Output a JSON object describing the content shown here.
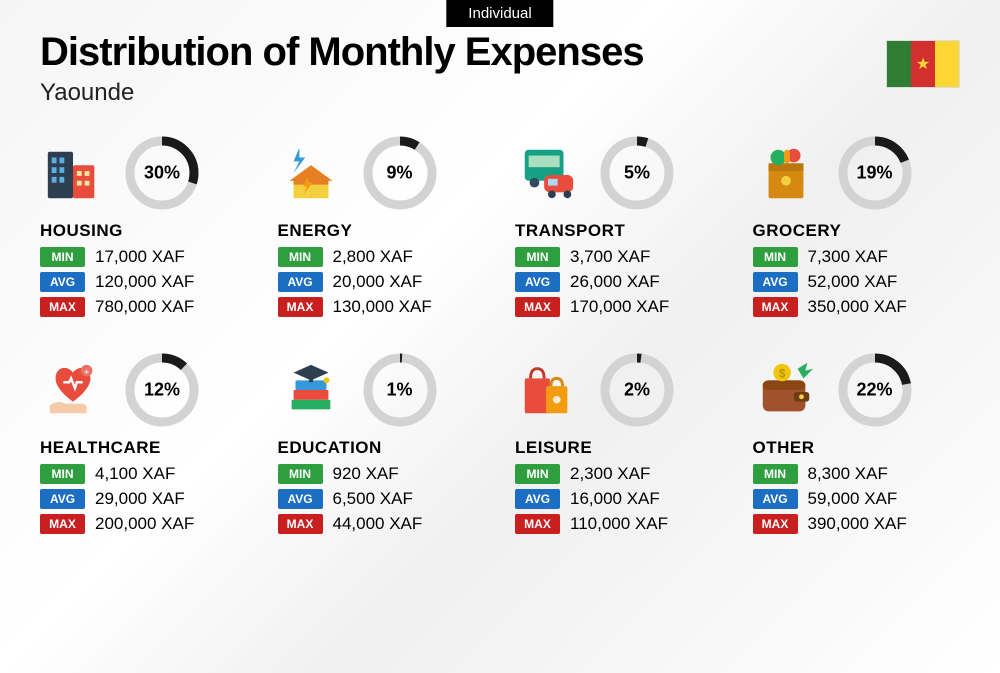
{
  "tag": "Individual",
  "title": "Distribution of Monthly Expenses",
  "subtitle": "Yaounde",
  "labels": {
    "min": "MIN",
    "avg": "AVG",
    "max": "MAX"
  },
  "currency": "XAF",
  "donut": {
    "radius": 32,
    "stroke": 9,
    "track_color": "#d3d3d3",
    "progress_color": "#1a1a1a"
  },
  "badge_colors": {
    "min": "#2e9e3f",
    "avg": "#1b6ec2",
    "max": "#c81f1f"
  },
  "flag_colors": {
    "left": "#2e7d32",
    "center": "#d32f2f",
    "right": "#fdd835",
    "star": "#fdd835"
  },
  "categories": [
    {
      "key": "housing",
      "name": "HOUSING",
      "pct": 30,
      "min": "17,000",
      "avg": "120,000",
      "max": "780,000",
      "icon": "buildings-icon"
    },
    {
      "key": "energy",
      "name": "ENERGY",
      "pct": 9,
      "min": "2,800",
      "avg": "20,000",
      "max": "130,000",
      "icon": "bolt-house-icon"
    },
    {
      "key": "transport",
      "name": "TRANSPORT",
      "pct": 5,
      "min": "3,700",
      "avg": "26,000",
      "max": "170,000",
      "icon": "bus-car-icon"
    },
    {
      "key": "grocery",
      "name": "GROCERY",
      "pct": 19,
      "min": "7,300",
      "avg": "52,000",
      "max": "350,000",
      "icon": "grocery-bag-icon"
    },
    {
      "key": "healthcare",
      "name": "HEALTHCARE",
      "pct": 12,
      "min": "4,100",
      "avg": "29,000",
      "max": "200,000",
      "icon": "heart-hand-icon"
    },
    {
      "key": "education",
      "name": "EDUCATION",
      "pct": 1,
      "min": "920",
      "avg": "6,500",
      "max": "44,000",
      "icon": "grad-books-icon"
    },
    {
      "key": "leisure",
      "name": "LEISURE",
      "pct": 2,
      "min": "2,300",
      "avg": "16,000",
      "max": "110,000",
      "icon": "shopping-bags-icon"
    },
    {
      "key": "other",
      "name": "OTHER",
      "pct": 22,
      "min": "8,300",
      "avg": "59,000",
      "max": "390,000",
      "icon": "wallet-icon"
    }
  ]
}
